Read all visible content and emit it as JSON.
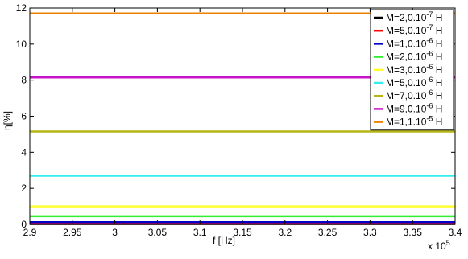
{
  "chart_data": {
    "type": "line",
    "xlabel": "f [Hz]",
    "ylabel": "η[%]",
    "x_multiplier_prefix": "x 10",
    "x_multiplier_exponent": "5",
    "xlim": [
      2.9,
      3.4
    ],
    "ylim": [
      0,
      12
    ],
    "x_ticks": [
      "2.9",
      "2.95",
      "3",
      "3.05",
      "3.1",
      "3.15",
      "3.2",
      "3.25",
      "3.3",
      "3.35",
      "3.4"
    ],
    "y_ticks": [
      "0",
      "2",
      "4",
      "6",
      "8",
      "10",
      "12"
    ],
    "x": [
      2.9,
      3.4
    ],
    "grid": false,
    "legend_position": "top-right",
    "series": [
      {
        "name_base": "M=2,0.10",
        "name_exp": "-7",
        "name_unit": " H",
        "color": "#000000",
        "values": [
          0.02,
          0.02
        ]
      },
      {
        "name_base": "M=5,0.10",
        "name_exp": "-7",
        "name_unit": " H",
        "color": "#ff0000",
        "values": [
          0.03,
          0.03
        ]
      },
      {
        "name_base": "M=1,0.10",
        "name_exp": "-6",
        "name_unit": " H",
        "color": "#0000c8",
        "values": [
          0.12,
          0.12
        ]
      },
      {
        "name_base": "M=2,0.10",
        "name_exp": "-6",
        "name_unit": " H",
        "color": "#33ee33",
        "values": [
          0.45,
          0.45
        ]
      },
      {
        "name_base": "M=3,0.10",
        "name_exp": "-6",
        "name_unit": " H",
        "color": "#ffff33",
        "values": [
          1.0,
          1.0
        ]
      },
      {
        "name_base": "M=5,0.10",
        "name_exp": "-6",
        "name_unit": " H",
        "color": "#33eeee",
        "values": [
          2.7,
          2.7
        ]
      },
      {
        "name_base": "M=7,0.10",
        "name_exp": "-6",
        "name_unit": " H",
        "color": "#b5b514",
        "values": [
          5.15,
          5.15
        ]
      },
      {
        "name_base": "M=9,0.10",
        "name_exp": "-6",
        "name_unit": " H",
        "color": "#c814c8",
        "values": [
          8.15,
          8.15
        ]
      },
      {
        "name_base": "M=1,1.10",
        "name_exp": "-5",
        "name_unit": " H",
        "color": "#ee8000",
        "values": [
          11.7,
          11.7
        ]
      }
    ]
  }
}
